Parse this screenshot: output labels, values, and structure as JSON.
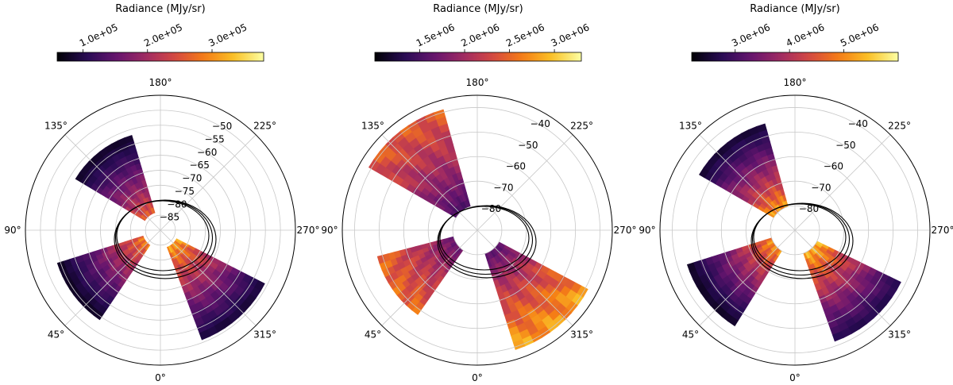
{
  "chart_data": [
    {
      "type": "heatmap",
      "projection": "polar",
      "colormap": "inferno",
      "colorbar": {
        "title": "Radiance (MJy/sr)",
        "range": [
          60000,
          380000
        ],
        "ticks": [
          100000,
          200000,
          300000
        ],
        "tick_labels": [
          "1.0e+05",
          "2.0e+05",
          "3.0e+05"
        ]
      },
      "angular_labels": [
        "0°",
        "45°",
        "90°",
        "135°",
        "180°",
        "225°",
        "270°",
        "315°"
      ],
      "radial_range": [
        -90,
        -45
      ],
      "radial_ticks": [
        -85,
        -80,
        -75,
        -70,
        -65,
        -60,
        -55,
        -50
      ],
      "radial_tick_labels": [
        "−85",
        "−80",
        "−75",
        "−70",
        "−65",
        "−60",
        "−55",
        "−50"
      ],
      "grid": true,
      "swaths": [
        {
          "center_angle": 142,
          "inner": -84,
          "outer": -57,
          "half_width_deg": 21,
          "inner_value": 290000,
          "outer_value": 80000
        },
        {
          "center_angle": 318,
          "inner": -84,
          "outer": -51,
          "half_width_deg": 21,
          "inner_value": 350000,
          "outer_value": 90000
        },
        {
          "center_angle": 53,
          "inner": -84,
          "outer": -54,
          "half_width_deg": 19,
          "inner_value": 320000,
          "outer_value": 75000
        }
      ]
    },
    {
      "type": "heatmap",
      "projection": "polar",
      "colormap": "inferno",
      "colorbar": {
        "title": "Radiance (MJy/sr)",
        "range": [
          1000000,
          3300000
        ],
        "ticks": [
          1500000,
          2000000,
          2500000,
          3000000
        ],
        "tick_labels": [
          "1.5e+06",
          "2.0e+06",
          "2.5e+06",
          "3.0e+06"
        ]
      },
      "angular_labels": [
        "0°",
        "45°",
        "90°",
        "135°",
        "180°",
        "225°",
        "270°",
        "315°"
      ],
      "radial_range": [
        -90,
        -35
      ],
      "radial_ticks": [
        -80,
        -70,
        -60,
        -50,
        -40
      ],
      "radial_tick_labels": [
        "−80",
        "−70",
        "−60",
        "−50",
        "−40"
      ],
      "grid": true,
      "swaths": [
        {
          "center_angle": 142,
          "inner": -80,
          "outer": -39,
          "half_width_deg": 22,
          "inner_value": 1500000,
          "outer_value": 2600000
        },
        {
          "center_angle": 320,
          "inner": -80,
          "outer": -39,
          "half_width_deg": 22,
          "inner_value": 1600000,
          "outer_value": 3000000
        },
        {
          "center_angle": 55,
          "inner": -80,
          "outer": -48,
          "half_width_deg": 20,
          "inner_value": 1700000,
          "outer_value": 2700000
        }
      ]
    },
    {
      "type": "heatmap",
      "projection": "polar",
      "colormap": "inferno",
      "colorbar": {
        "title": "Radiance (MJy/sr)",
        "range": [
          2200000,
          6000000
        ],
        "ticks": [
          3000000,
          4000000,
          5000000
        ],
        "tick_labels": [
          "3.0e+06",
          "4.0e+06",
          "5.0e+06"
        ]
      },
      "angular_labels": [
        "0°",
        "45°",
        "90°",
        "135°",
        "180°",
        "225°",
        "270°",
        "315°"
      ],
      "radial_range": [
        -90,
        -35
      ],
      "radial_ticks": [
        -80,
        -70,
        -60,
        -50,
        -40
      ],
      "radial_tick_labels": [
        "−80",
        "−70",
        "−60",
        "−50",
        "−40"
      ],
      "grid": true,
      "swaths": [
        {
          "center_angle": 142,
          "inner": -80,
          "outer": -45,
          "half_width_deg": 22,
          "inner_value": 5600000,
          "outer_value": 2500000
        },
        {
          "center_angle": 318,
          "inner": -80,
          "outer": -42,
          "half_width_deg": 22,
          "inner_value": 5800000,
          "outer_value": 2700000
        },
        {
          "center_angle": 52,
          "inner": -80,
          "outer": -44,
          "half_width_deg": 20,
          "inner_value": 5500000,
          "outer_value": 2400000
        }
      ]
    }
  ]
}
